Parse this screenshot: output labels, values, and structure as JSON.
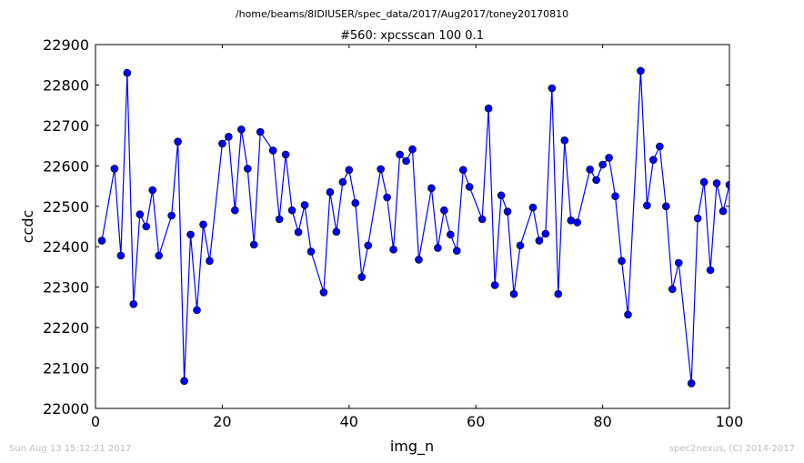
{
  "suptitle": "/home/beams/8IDIUSER/spec_data/2017/Aug2017/toney20170810",
  "footer": {
    "timestamp": "Sun Aug 13 15:12:21 2017",
    "credit": "spec2nexus, (C) 2014-2017"
  },
  "chart_data": {
    "type": "line",
    "title": "#560: xpcsscan 100 0.1",
    "xlabel": "img_n",
    "ylabel": "ccdc",
    "xlim": [
      0,
      100
    ],
    "ylim": [
      22000,
      22900
    ],
    "xticks": [
      0,
      20,
      40,
      60,
      80,
      100
    ],
    "yticks": [
      22000,
      22100,
      22200,
      22300,
      22400,
      22500,
      22600,
      22700,
      22800,
      22900
    ],
    "grid": false,
    "marker": "circle",
    "color": "#0000ff",
    "series": [
      {
        "x": [
          1,
          3,
          4,
          5,
          6,
          7,
          8,
          9,
          10,
          12,
          13,
          14,
          15,
          16,
          17,
          18,
          20,
          21,
          22,
          23,
          24,
          25,
          26,
          28,
          29,
          30,
          31,
          32,
          33,
          34,
          36,
          37,
          38,
          39,
          40,
          41,
          42,
          43,
          45,
          46,
          47,
          48,
          49,
          50,
          51,
          53,
          54,
          55,
          56,
          57,
          58,
          59,
          61,
          62,
          63,
          64,
          65,
          66,
          67,
          69,
          70,
          71,
          72,
          73,
          74,
          75,
          76,
          78,
          79,
          80,
          81,
          82,
          83,
          84,
          86,
          87,
          88,
          89,
          90,
          91,
          92,
          94,
          95,
          96,
          97,
          98,
          99,
          100
        ],
        "y": [
          22415,
          22593,
          22378,
          22830,
          22258,
          22480,
          22450,
          22540,
          22378,
          22477,
          22660,
          22068,
          22430,
          22243,
          22455,
          22365,
          22655,
          22672,
          22490,
          22690,
          22593,
          22405,
          22684,
          22638,
          22468,
          22628,
          22490,
          22436,
          22503,
          22388,
          22287,
          22535,
          22437,
          22560,
          22590,
          22508,
          22325,
          22403,
          22592,
          22522,
          22393,
          22628,
          22612,
          22641,
          22368,
          22545,
          22397,
          22490,
          22430,
          22390,
          22590,
          22548,
          22468,
          22742,
          22305,
          22527,
          22487,
          22283,
          22403,
          22497,
          22415,
          22432,
          22792,
          22283,
          22663,
          22465,
          22460,
          22591,
          22565,
          22603,
          22620,
          22525,
          22365,
          22232,
          22835,
          22502,
          22615,
          22648,
          22500,
          22295,
          22360,
          22062,
          22470,
          22560,
          22342,
          22557,
          22488,
          22553
        ]
      }
    ]
  }
}
